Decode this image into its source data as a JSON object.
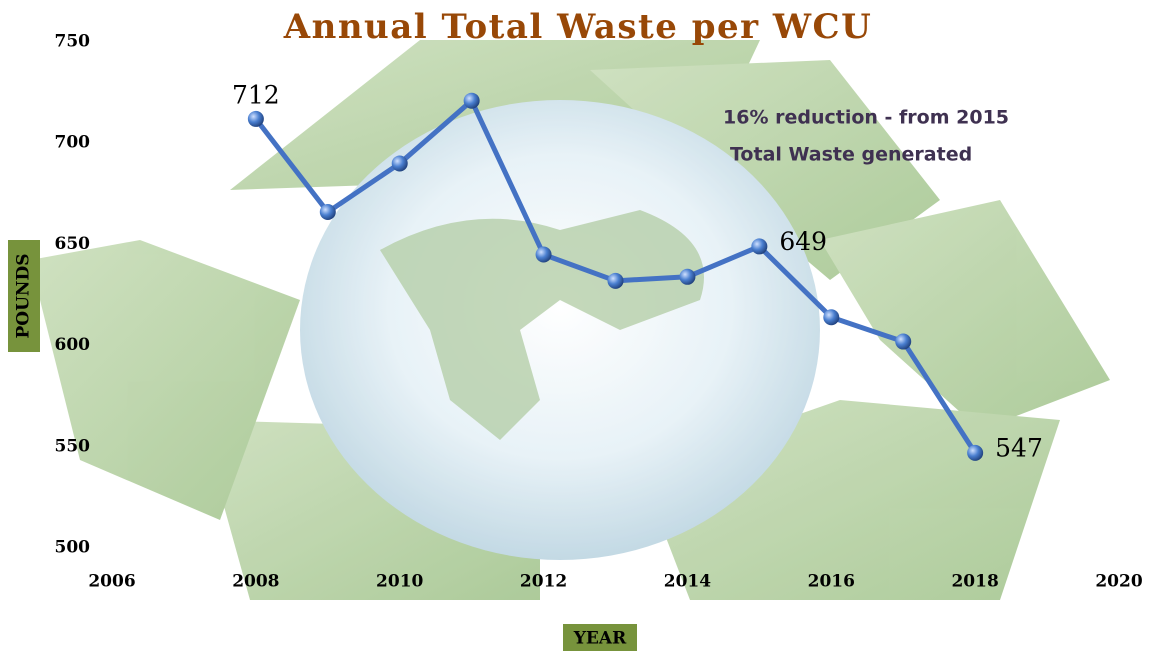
{
  "chart_data": {
    "type": "line",
    "title": "Annual Total Waste per WCU",
    "x_label": "YEAR",
    "y_label": "POUNDS",
    "annotations": [
      "16% reduction - from 2015",
      "Total Waste generated"
    ],
    "x": [
      2008,
      2009,
      2010,
      2011,
      2012,
      2013,
      2014,
      2015,
      2016,
      2017,
      2018
    ],
    "values": [
      712,
      666,
      690,
      721,
      645,
      632,
      634,
      649,
      614,
      602,
      547
    ],
    "value_labels": [
      "712",
      null,
      null,
      null,
      null,
      null,
      null,
      "649",
      null,
      null,
      "547"
    ],
    "color": "#4472c4",
    "xlim": [
      2006,
      2020
    ],
    "xticks": [
      2006,
      2008,
      2010,
      2012,
      2014,
      2016,
      2018,
      2020
    ],
    "ylim": [
      500,
      750
    ],
    "yticks": [
      500,
      550,
      600,
      650,
      700,
      750
    ],
    "grid": false
  }
}
